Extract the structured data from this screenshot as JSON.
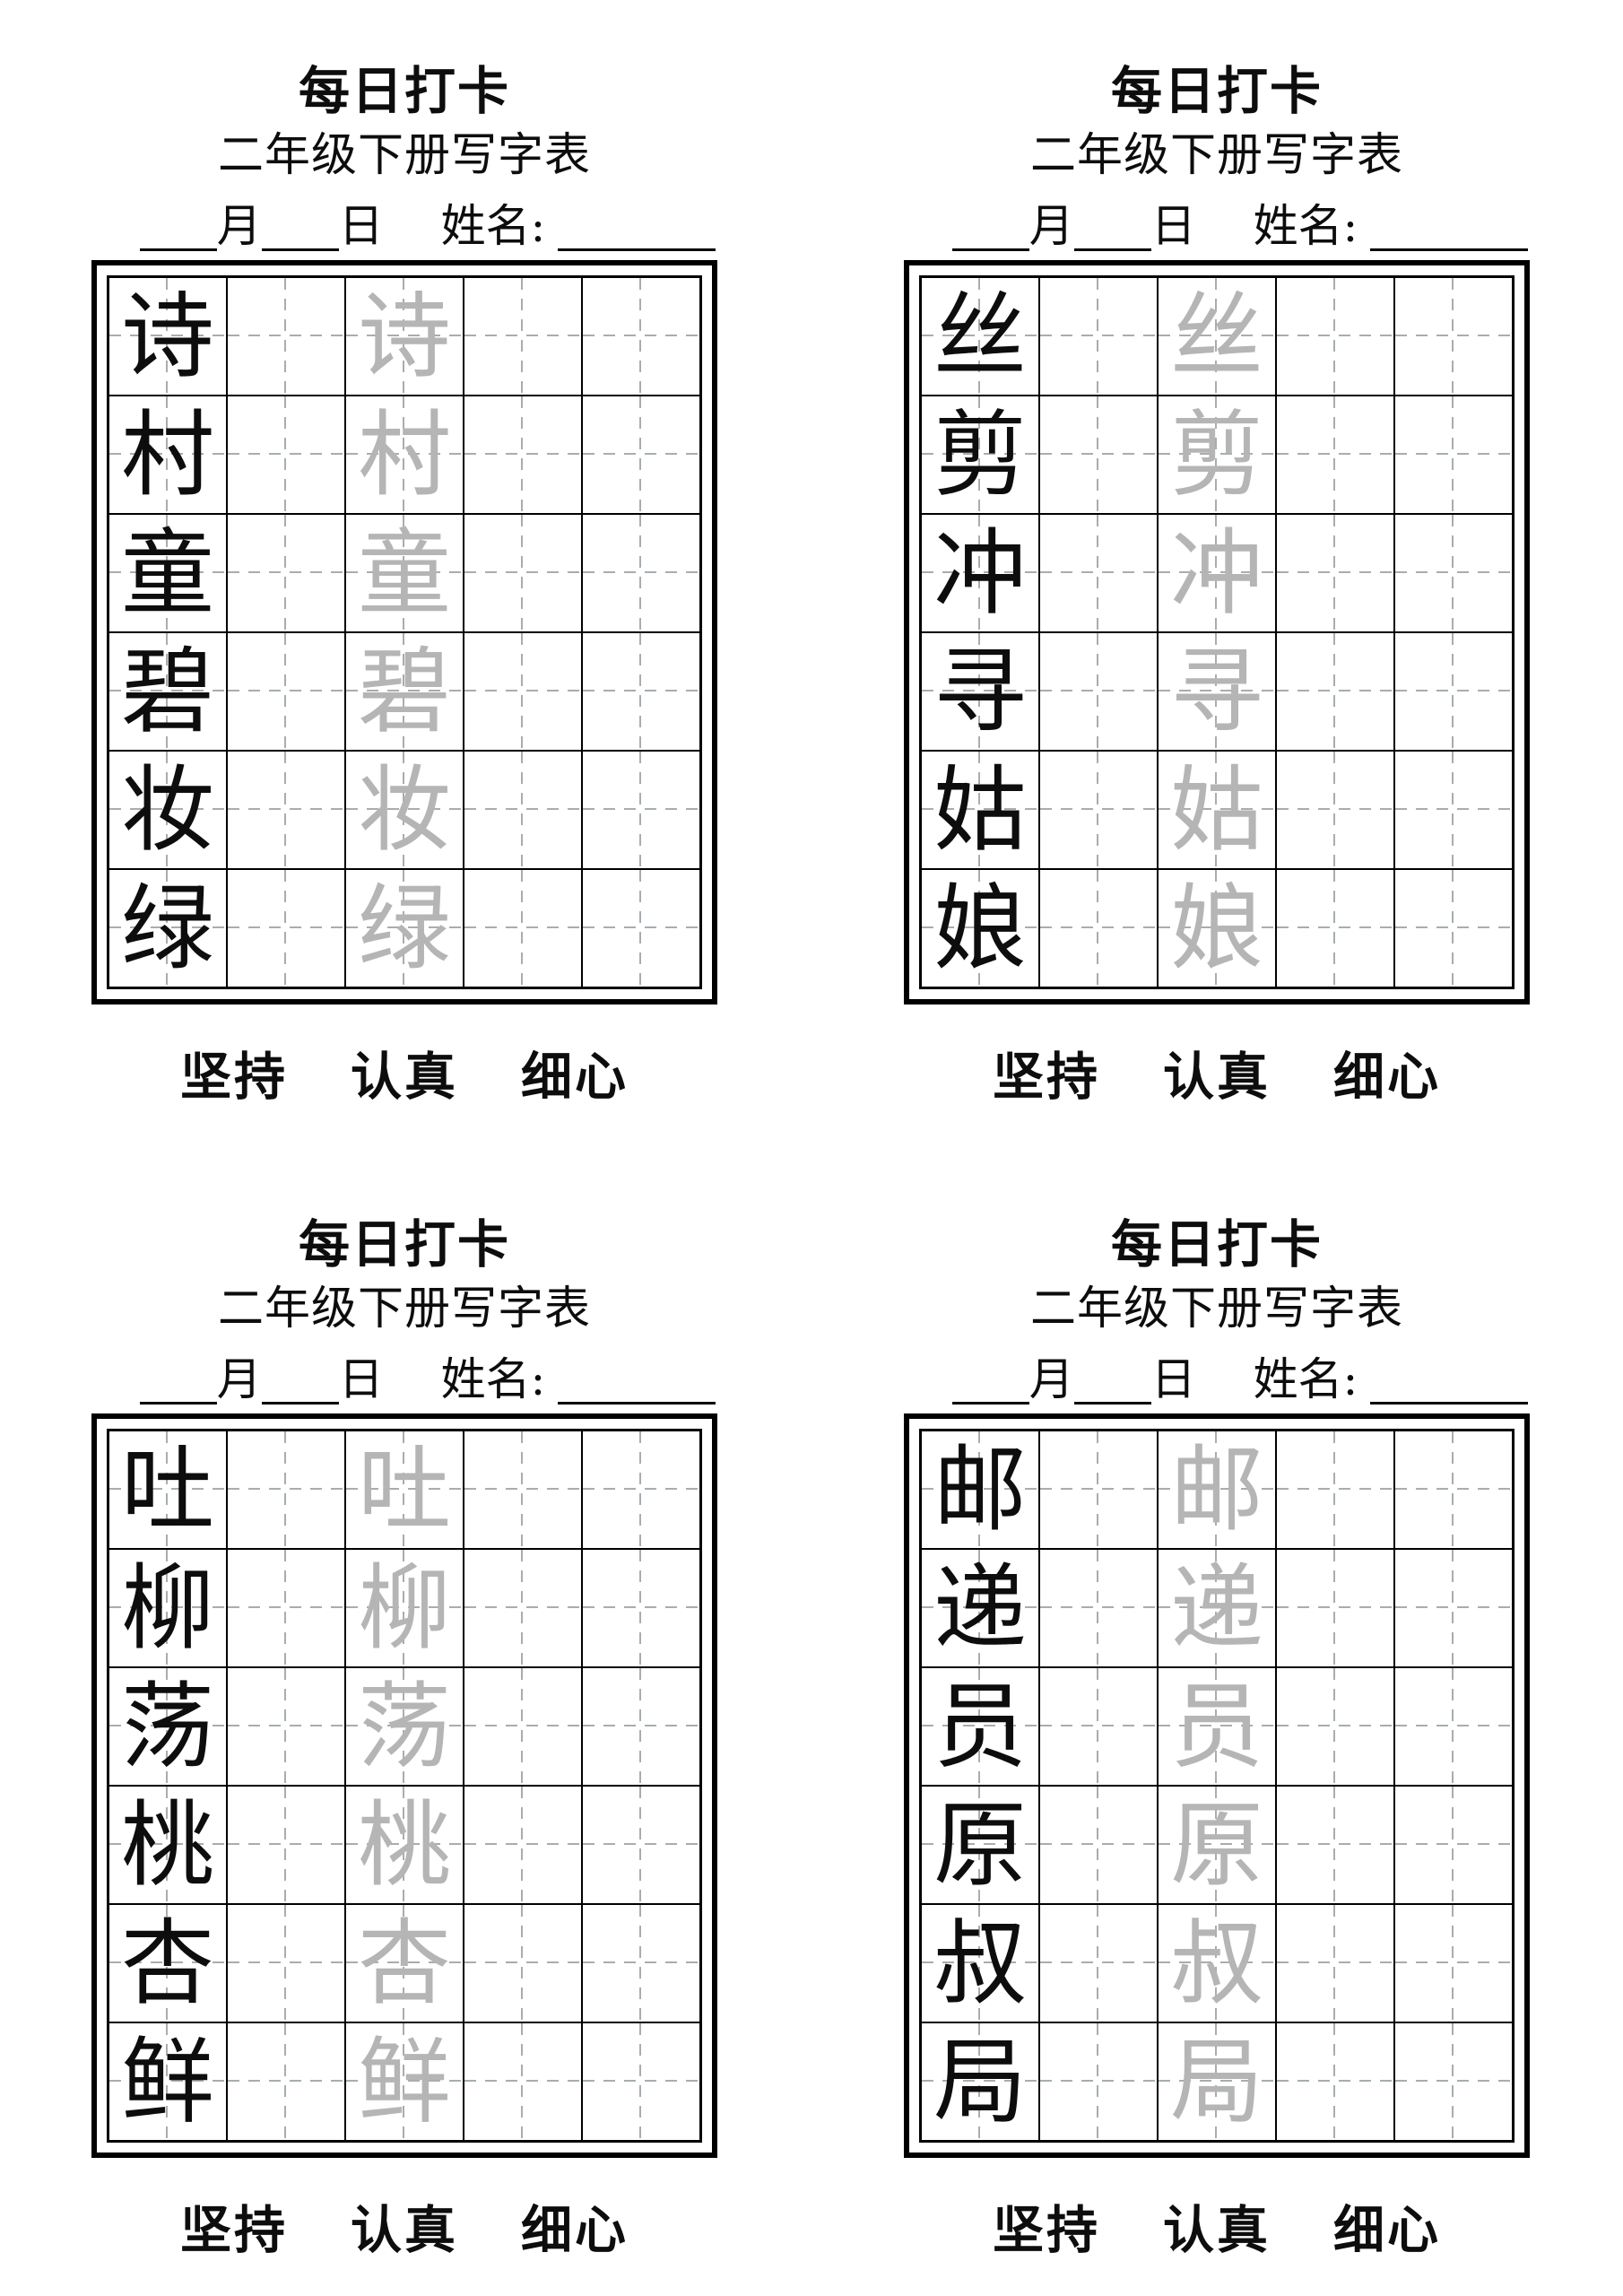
{
  "shared": {
    "title": "每日打卡",
    "subtitle": "二年级下册写字表",
    "date_line": {
      "month_label": "月",
      "day_label": "日",
      "name_label": "姓名:"
    },
    "footer_words": [
      "坚持",
      "认真",
      "细心"
    ]
  },
  "grid": {
    "rows": 6,
    "cols": 5,
    "model_col": 0,
    "trace_col": 2
  },
  "colors": {
    "ink": "#0d0d0d",
    "trace_gray": "#b5b5b5",
    "dash_gray": "#a7adb0",
    "line_black": "#000000",
    "background": "#ffffff"
  },
  "panels": [
    {
      "id": "top-left",
      "characters": [
        "诗",
        "村",
        "童",
        "碧",
        "妆",
        "绿"
      ]
    },
    {
      "id": "top-right",
      "characters": [
        "丝",
        "剪",
        "冲",
        "寻",
        "姑",
        "娘"
      ]
    },
    {
      "id": "bottom-left",
      "characters": [
        "吐",
        "柳",
        "荡",
        "桃",
        "杏",
        "鲜"
      ]
    },
    {
      "id": "bottom-right",
      "characters": [
        "邮",
        "递",
        "员",
        "原",
        "叔",
        "局"
      ]
    }
  ]
}
